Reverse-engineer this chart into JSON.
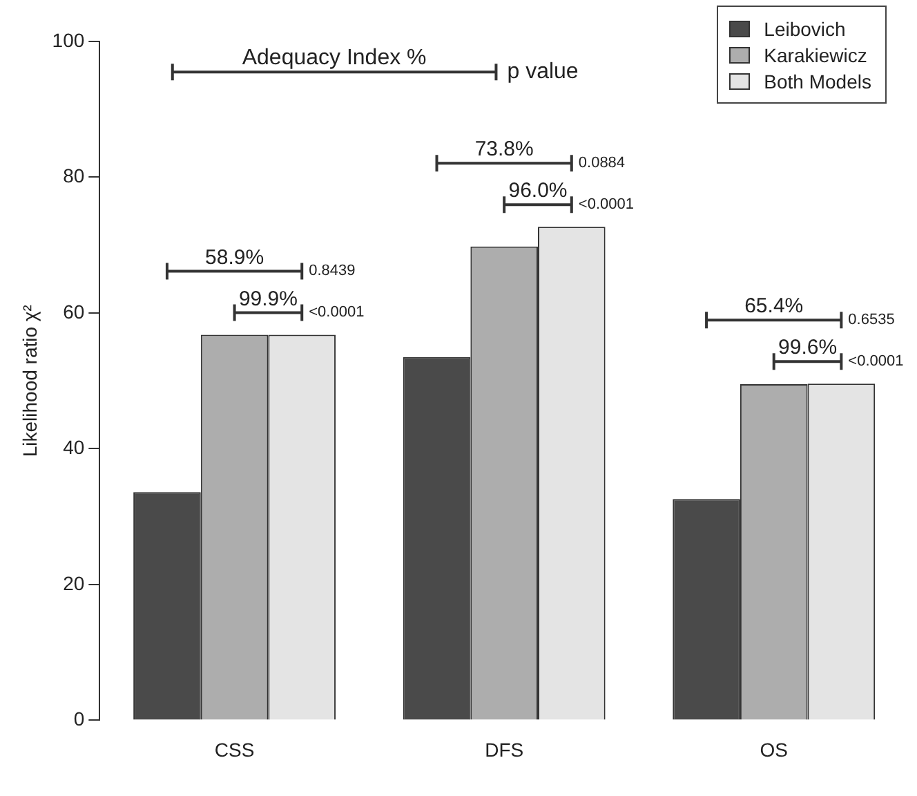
{
  "chart_data": {
    "type": "bar",
    "ylabel": "Likelihood ratio χ²",
    "categories": [
      "CSS",
      "DFS",
      "OS"
    ],
    "series": [
      {
        "name": "Leibovich",
        "color": "#4a4a4a",
        "values": [
          33.6,
          53.5,
          32.6
        ]
      },
      {
        "name": "Karakiewicz",
        "color": "#adadad",
        "values": [
          56.8,
          69.8,
          49.5
        ]
      },
      {
        "name": "Both Models",
        "color": "#e4e4e4",
        "values": [
          56.8,
          72.7,
          49.6
        ]
      }
    ],
    "ylim": [
      0,
      100
    ],
    "yticks": [
      0,
      20,
      40,
      60,
      80,
      100
    ],
    "grid": false,
    "legend": "top right",
    "annotations": [
      "Adequacy Index %",
      "p value",
      "58.9%",
      "0.8439",
      "99.9%",
      "<0.0001",
      "73.8%",
      "0.0884",
      "96.0%",
      "<0.0001",
      "65.4%",
      "0.6535",
      "99.6%",
      "<0.0001"
    ]
  }
}
